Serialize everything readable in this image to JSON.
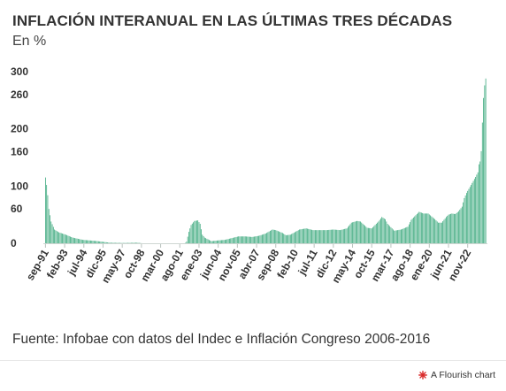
{
  "header": {
    "title": "INFLACIÓN INTERANUAL EN LAS ÚLTIMAS TRES DÉCADAS",
    "subtitle": "En %"
  },
  "footer": {
    "source": "Fuente: Infobae con datos del Indec e Inflación Congreso 2006-2016",
    "credit": "A Flourish chart",
    "credit_icon": "flourish-logo-icon",
    "credit_icon_color": "#d92b2b"
  },
  "chart_data": {
    "type": "bar",
    "title": "INFLACIÓN INTERANUAL EN LAS ÚLTIMAS TRES DÉCADAS",
    "subtitle": "En %",
    "xlabel": "",
    "ylabel": "",
    "y_ticks": [
      0,
      60,
      100,
      160,
      200,
      260,
      300
    ],
    "ylim": [
      0,
      300
    ],
    "x_tick_labels": [
      "sep-91",
      "feb-93",
      "jul-94",
      "dic-95",
      "may-97",
      "oct-98",
      "mar-00",
      "ago-01",
      "ene-03",
      "jun-04",
      "nov-05",
      "abr-07",
      "sep-08",
      "feb-10",
      "jul-11",
      "dic-12",
      "may-14",
      "oct-15",
      "mar-17",
      "ago-18",
      "ene-20",
      "jun-21",
      "nov-22"
    ],
    "grid": false,
    "bar_color": "#3aa87c",
    "anchors": [
      [
        "1991-09",
        115
      ],
      [
        "1991-10",
        102
      ],
      [
        "1991-11",
        84
      ],
      [
        "1991-12",
        60
      ],
      [
        "1992-02",
        38
      ],
      [
        "1992-05",
        24
      ],
      [
        "1992-09",
        19
      ],
      [
        "1993-03",
        15
      ],
      [
        "1993-09",
        10
      ],
      [
        "1994-06",
        6
      ],
      [
        "1995-06",
        4
      ],
      [
        "1996-06",
        1
      ],
      [
        "1997-06",
        0.5
      ],
      [
        "1998-06",
        1
      ],
      [
        "1999-06",
        -1.5
      ],
      [
        "2000-06",
        -1.2
      ],
      [
        "2001-07",
        -1.1
      ],
      [
        "2001-12",
        -1.5
      ],
      [
        "2002-02",
        3
      ],
      [
        "2002-04",
        20
      ],
      [
        "2002-06",
        32
      ],
      [
        "2002-09",
        39
      ],
      [
        "2002-12",
        40
      ],
      [
        "2003-02",
        34
      ],
      [
        "2003-04",
        15
      ],
      [
        "2003-06",
        10
      ],
      [
        "2003-12",
        3.7
      ],
      [
        "2004-06",
        5
      ],
      [
        "2004-12",
        6
      ],
      [
        "2005-06",
        9
      ],
      [
        "2005-12",
        12
      ],
      [
        "2006-06",
        12
      ],
      [
        "2006-12",
        11
      ],
      [
        "2007-06",
        13
      ],
      [
        "2007-12",
        17
      ],
      [
        "2008-06",
        24
      ],
      [
        "2008-09",
        23
      ],
      [
        "2009-03",
        18
      ],
      [
        "2009-06",
        14
      ],
      [
        "2009-10",
        15
      ],
      [
        "2010-06",
        24
      ],
      [
        "2010-12",
        26
      ],
      [
        "2011-06",
        23
      ],
      [
        "2011-12",
        23
      ],
      [
        "2012-06",
        23
      ],
      [
        "2012-12",
        24
      ],
      [
        "2013-06",
        23
      ],
      [
        "2013-12",
        26
      ],
      [
        "2014-04",
        36
      ],
      [
        "2014-09",
        39
      ],
      [
        "2014-12",
        38
      ],
      [
        "2015-06",
        27
      ],
      [
        "2015-10",
        26
      ],
      [
        "2016-04",
        38
      ],
      [
        "2016-07",
        46
      ],
      [
        "2016-10",
        42
      ],
      [
        "2016-12",
        34
      ],
      [
        "2017-06",
        22
      ],
      [
        "2017-12",
        24
      ],
      [
        "2018-06",
        29
      ],
      [
        "2018-09",
        41
      ],
      [
        "2018-12",
        47
      ],
      [
        "2019-04",
        55
      ],
      [
        "2019-08",
        52
      ],
      [
        "2019-12",
        52
      ],
      [
        "2020-03",
        47
      ],
      [
        "2020-06",
        42
      ],
      [
        "2020-09",
        36
      ],
      [
        "2020-12",
        36
      ],
      [
        "2021-04",
        46
      ],
      [
        "2021-06",
        50
      ],
      [
        "2021-09",
        52
      ],
      [
        "2021-12",
        51
      ],
      [
        "2022-03",
        56
      ],
      [
        "2022-06",
        64
      ],
      [
        "2022-08",
        79
      ],
      [
        "2022-10",
        88
      ],
      [
        "2022-12",
        95
      ],
      [
        "2023-02",
        102
      ],
      [
        "2023-04",
        109
      ],
      [
        "2023-06",
        116
      ],
      [
        "2023-08",
        124
      ],
      [
        "2023-09",
        138
      ],
      [
        "2023-10",
        143
      ],
      [
        "2023-11",
        161
      ],
      [
        "2023-12",
        211
      ],
      [
        "2024-01",
        254
      ],
      [
        "2024-02",
        276
      ],
      [
        "2024-03",
        288
      ]
    ]
  }
}
